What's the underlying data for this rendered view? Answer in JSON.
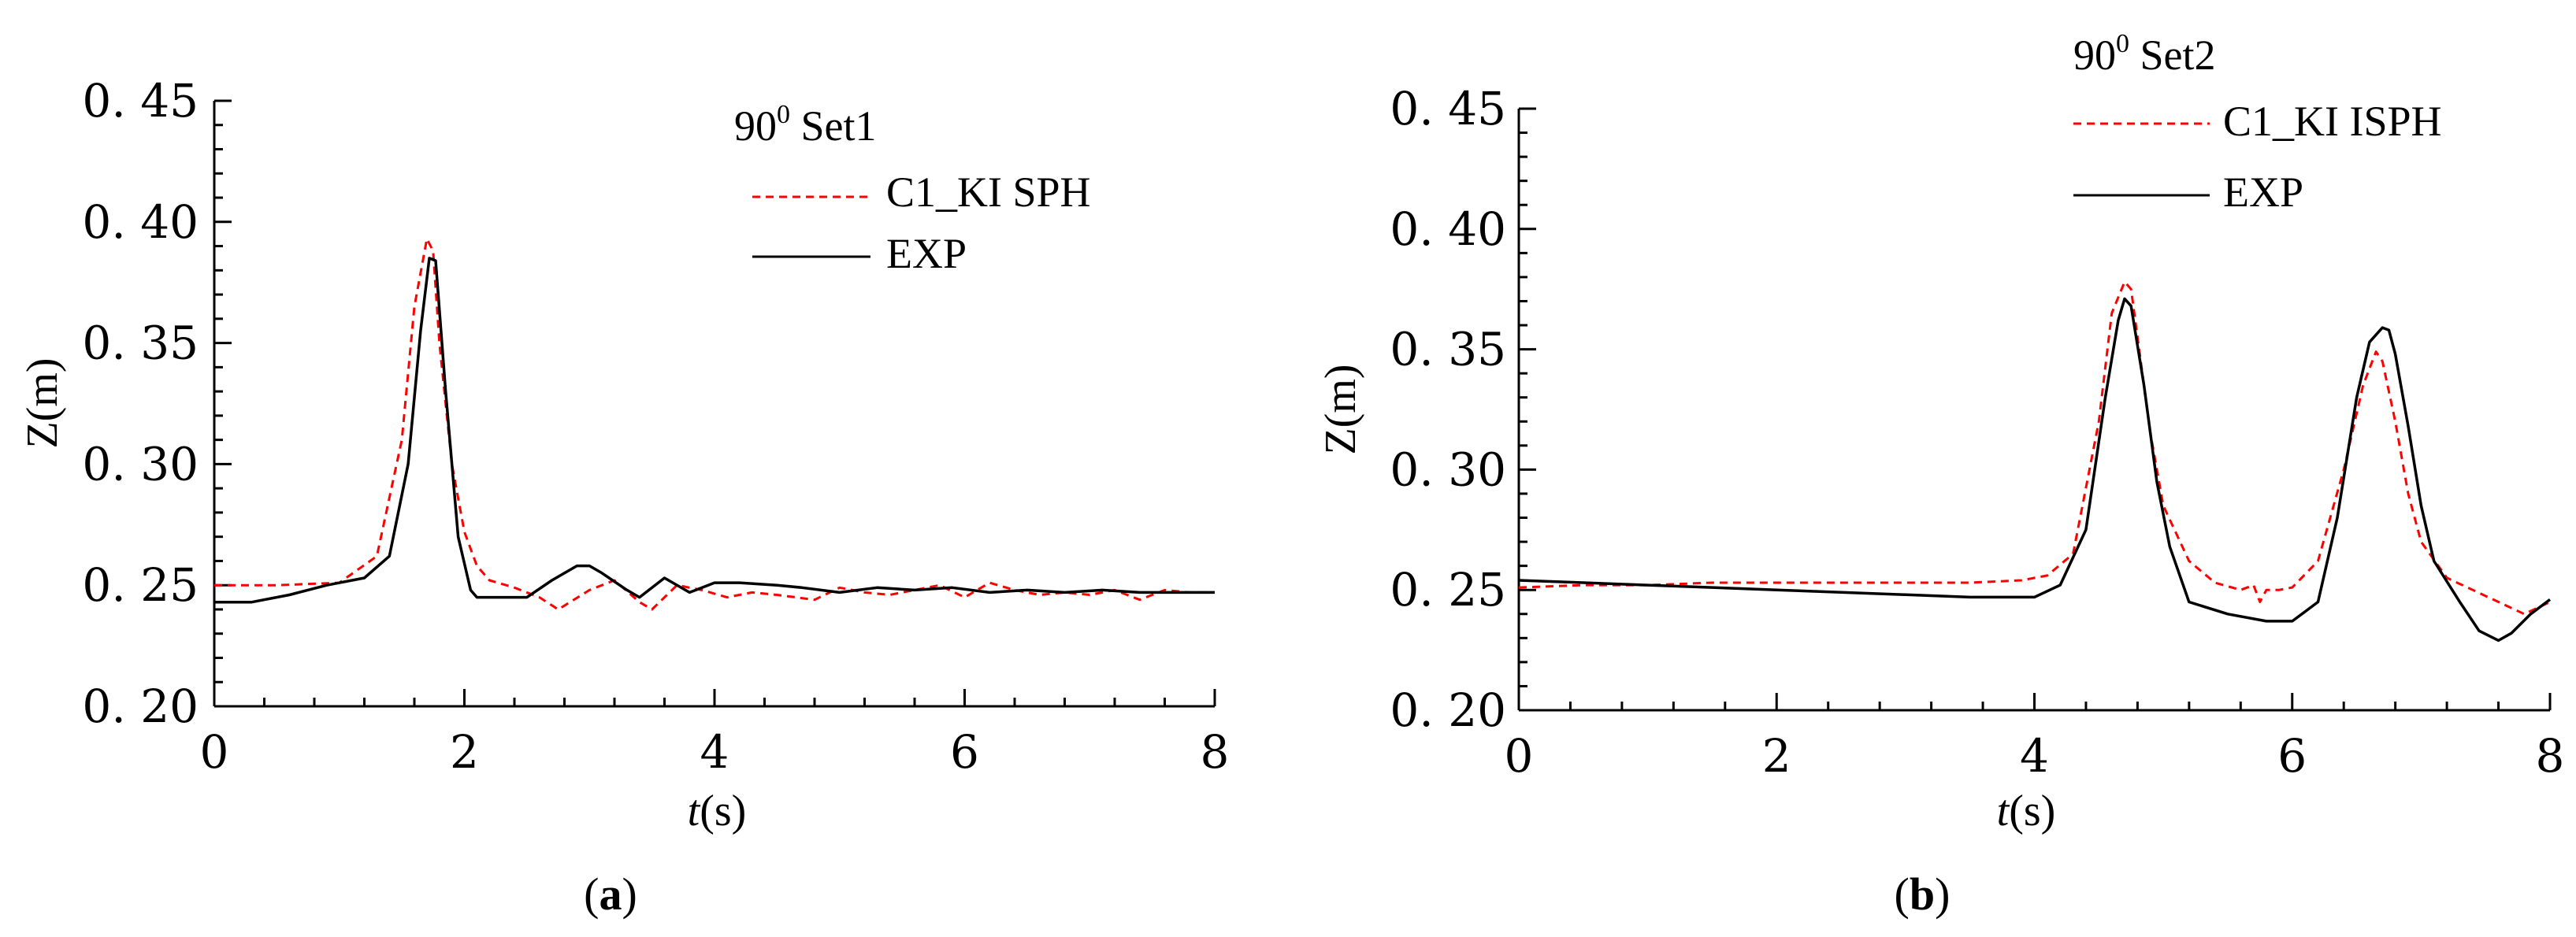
{
  "chart_data": [
    {
      "type": "line",
      "panel_label": "a",
      "xlabel_italic": "t",
      "xlabel_rest": "(s)",
      "ylabel": "Z(m)",
      "xlim": [
        0,
        8
      ],
      "ylim": [
        0.2,
        0.45
      ],
      "xticks": [
        "0",
        "2",
        "4",
        "6",
        "8"
      ],
      "yticks": [
        "0. 20",
        "0. 25",
        "0. 30",
        "0. 35",
        "0. 40",
        "0. 45"
      ],
      "legend_title_base": "90",
      "legend_title_sup": "0",
      "legend_title_rest": " Set1",
      "legend_position": "top-right",
      "grid": false,
      "series": [
        {
          "name": "C1_KI SPH",
          "color": "#ff0000",
          "dash": "dashed",
          "x": [
            0,
            0.5,
            1.0,
            1.3,
            1.5,
            1.6,
            1.7,
            1.75,
            1.8,
            1.9,
            2.0,
            2.1,
            2.2,
            2.4,
            2.6,
            2.75,
            3.0,
            3.2,
            3.4,
            3.5,
            3.7,
            3.9,
            4.1,
            4.3,
            4.5,
            4.8,
            5.0,
            5.2,
            5.4,
            5.6,
            5.8,
            6.0,
            6.2,
            6.4,
            6.6,
            6.8,
            7.0,
            7.2,
            7.4,
            7.6,
            7.8,
            8.0
          ],
          "y": [
            0.25,
            0.25,
            0.251,
            0.262,
            0.31,
            0.365,
            0.393,
            0.388,
            0.35,
            0.3,
            0.272,
            0.258,
            0.252,
            0.249,
            0.245,
            0.24,
            0.248,
            0.252,
            0.243,
            0.24,
            0.25,
            0.248,
            0.245,
            0.247,
            0.246,
            0.244,
            0.249,
            0.247,
            0.246,
            0.248,
            0.25,
            0.245,
            0.251,
            0.248,
            0.246,
            0.247,
            0.246,
            0.248,
            0.244,
            0.248,
            0.247,
            0.247
          ]
        },
        {
          "name": "EXP",
          "color": "#000000",
          "dash": "solid",
          "x": [
            0,
            0.3,
            0.6,
            0.9,
            1.2,
            1.4,
            1.55,
            1.65,
            1.72,
            1.77,
            1.85,
            1.95,
            2.05,
            2.1,
            2.3,
            2.5,
            2.7,
            2.9,
            3.0,
            3.1,
            3.3,
            3.4,
            3.6,
            3.8,
            4.0,
            4.2,
            4.5,
            4.7,
            5.0,
            5.3,
            5.6,
            5.9,
            6.2,
            6.5,
            6.8,
            7.1,
            7.4,
            7.7,
            8.0
          ],
          "y": [
            0.243,
            0.243,
            0.246,
            0.25,
            0.253,
            0.262,
            0.3,
            0.355,
            0.385,
            0.384,
            0.33,
            0.27,
            0.248,
            0.245,
            0.245,
            0.245,
            0.252,
            0.258,
            0.258,
            0.255,
            0.248,
            0.245,
            0.253,
            0.247,
            0.251,
            0.251,
            0.25,
            0.249,
            0.247,
            0.249,
            0.248,
            0.249,
            0.247,
            0.248,
            0.247,
            0.248,
            0.247,
            0.247,
            0.247
          ]
        }
      ]
    },
    {
      "type": "line",
      "panel_label": "b",
      "xlabel_italic": "t",
      "xlabel_rest": "(s)",
      "ylabel": "Z(m)",
      "xlim": [
        0,
        8
      ],
      "ylim": [
        0.2,
        0.45
      ],
      "xticks": [
        "0",
        "2",
        "4",
        "6",
        "8"
      ],
      "yticks": [
        "0. 20",
        "0. 25",
        "0. 30",
        "0. 35",
        "0. 40",
        "0. 45"
      ],
      "legend_title_base": "90",
      "legend_title_sup": "0",
      "legend_title_rest": " Set2",
      "legend_position": "top-right",
      "grid": false,
      "series": [
        {
          "name": "C1_KI ISPH",
          "color": "#ff0000",
          "dash": "dashed",
          "x": [
            0,
            0.5,
            1.0,
            1.5,
            2.0,
            2.5,
            3.0,
            3.5,
            3.9,
            4.1,
            4.3,
            4.5,
            4.6,
            4.7,
            4.75,
            4.8,
            4.9,
            5.0,
            5.2,
            5.4,
            5.6,
            5.7,
            5.75,
            5.8,
            5.9,
            6.0,
            6.2,
            6.4,
            6.55,
            6.65,
            6.7,
            6.8,
            6.9,
            7.0,
            7.2,
            7.4,
            7.6,
            7.8,
            8.0
          ],
          "y": [
            0.251,
            0.252,
            0.252,
            0.253,
            0.253,
            0.253,
            0.253,
            0.253,
            0.254,
            0.256,
            0.265,
            0.32,
            0.365,
            0.378,
            0.375,
            0.355,
            0.315,
            0.285,
            0.262,
            0.253,
            0.25,
            0.252,
            0.245,
            0.25,
            0.25,
            0.251,
            0.262,
            0.3,
            0.335,
            0.349,
            0.345,
            0.32,
            0.29,
            0.27,
            0.255,
            0.25,
            0.245,
            0.24,
            0.245
          ]
        },
        {
          "name": "EXP",
          "color": "#000000",
          "dash": "solid",
          "x": [
            0,
            0.5,
            1.0,
            1.5,
            2.0,
            2.5,
            3.0,
            3.5,
            4.0,
            4.2,
            4.4,
            4.55,
            4.65,
            4.7,
            4.75,
            4.85,
            4.95,
            5.05,
            5.2,
            5.5,
            5.8,
            6.0,
            6.2,
            6.35,
            6.5,
            6.6,
            6.7,
            6.75,
            6.8,
            6.9,
            7.0,
            7.1,
            7.3,
            7.45,
            7.6,
            7.7,
            7.85,
            8.0
          ],
          "y": [
            0.254,
            0.253,
            0.252,
            0.251,
            0.25,
            0.249,
            0.248,
            0.247,
            0.247,
            0.252,
            0.275,
            0.33,
            0.362,
            0.371,
            0.368,
            0.335,
            0.295,
            0.268,
            0.245,
            0.24,
            0.237,
            0.237,
            0.245,
            0.28,
            0.33,
            0.353,
            0.359,
            0.358,
            0.348,
            0.318,
            0.285,
            0.262,
            0.245,
            0.233,
            0.229,
            0.232,
            0.24,
            0.246
          ]
        }
      ]
    }
  ]
}
